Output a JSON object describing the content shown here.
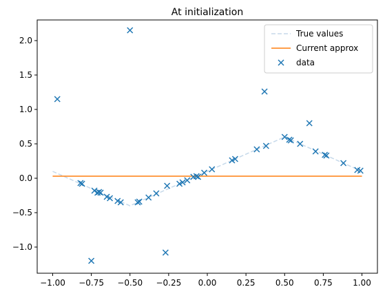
{
  "chart_data": {
    "type": "line",
    "title": "At initialization",
    "xlim": [
      -1.1,
      1.1
    ],
    "ylim": [
      -1.38,
      2.3
    ],
    "x_ticks": [
      -1.0,
      -0.75,
      -0.5,
      -0.25,
      0.0,
      0.25,
      0.5,
      0.75,
      1.0
    ],
    "x_tick_labels": [
      "−1.00",
      "−0.75",
      "−0.50",
      "−0.25",
      "0.00",
      "0.25",
      "0.50",
      "0.75",
      "1.00"
    ],
    "y_ticks": [
      -1.0,
      -0.5,
      0.0,
      0.5,
      1.0,
      1.5,
      2.0
    ],
    "y_tick_labels": [
      "−1.0",
      "−0.5",
      "0.0",
      "0.5",
      "1.0",
      "1.5",
      "2.0"
    ],
    "grid": false,
    "legend_placement": "top-right",
    "series": [
      {
        "name": "True values",
        "kind": "line",
        "style": "dashed",
        "color": "#c6d9ea",
        "x": [
          -1.0,
          -0.5,
          0.5,
          1.0
        ],
        "y": [
          0.1,
          -0.4,
          0.6,
          0.1
        ]
      },
      {
        "name": "Current approx",
        "kind": "line",
        "style": "solid",
        "color": "#ff7f0e",
        "x": [
          -1.0,
          1.0
        ],
        "y": [
          0.03,
          0.03
        ]
      },
      {
        "name": "data",
        "kind": "scatter",
        "marker": "x",
        "color": "#1f77b4",
        "points": [
          [
            -0.97,
            1.15
          ],
          [
            -0.82,
            -0.07
          ],
          [
            -0.81,
            -0.08
          ],
          [
            -0.75,
            -1.2
          ],
          [
            -0.73,
            -0.18
          ],
          [
            -0.71,
            -0.21
          ],
          [
            -0.7,
            -0.2
          ],
          [
            -0.69,
            -0.21
          ],
          [
            -0.65,
            -0.27
          ],
          [
            -0.63,
            -0.29
          ],
          [
            -0.58,
            -0.33
          ],
          [
            -0.56,
            -0.35
          ],
          [
            -0.5,
            2.15
          ],
          [
            -0.45,
            -0.35
          ],
          [
            -0.44,
            -0.34
          ],
          [
            -0.38,
            -0.28
          ],
          [
            -0.33,
            -0.22
          ],
          [
            -0.27,
            -1.08
          ],
          [
            -0.26,
            -0.11
          ],
          [
            -0.18,
            -0.08
          ],
          [
            -0.16,
            -0.06
          ],
          [
            -0.13,
            -0.03
          ],
          [
            -0.09,
            0.02
          ],
          [
            -0.07,
            0.03
          ],
          [
            -0.06,
            0.02
          ],
          [
            -0.02,
            0.08
          ],
          [
            0.03,
            0.13
          ],
          [
            0.16,
            0.26
          ],
          [
            0.18,
            0.28
          ],
          [
            0.32,
            0.42
          ],
          [
            0.37,
            1.26
          ],
          [
            0.38,
            0.47
          ],
          [
            0.5,
            0.6
          ],
          [
            0.53,
            0.56
          ],
          [
            0.54,
            0.55
          ],
          [
            0.6,
            0.5
          ],
          [
            0.66,
            0.8
          ],
          [
            0.7,
            0.39
          ],
          [
            0.76,
            0.34
          ],
          [
            0.77,
            0.33
          ],
          [
            0.88,
            0.22
          ],
          [
            0.97,
            0.12
          ],
          [
            0.99,
            0.11
          ]
        ]
      }
    ]
  }
}
